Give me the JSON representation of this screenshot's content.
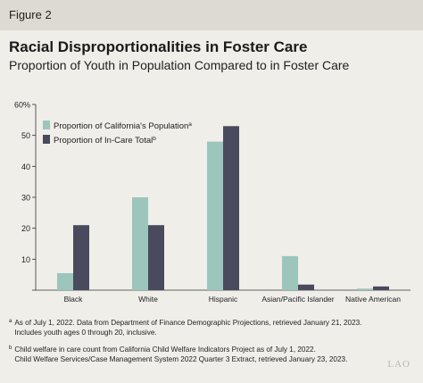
{
  "figure_label": "Figure 2",
  "footnotes": {
    "a_marker": "a",
    "a_text_line1": "As of July 1, 2022. Data from Department of Finance Demographic Projections, retrieved January 21, 2023.",
    "a_text_line2": "Includes youth ages 0 through 20, inclusive.",
    "b_marker": "b",
    "b_text_line1": "Child welfare in care count from California Child Welfare Indicators Project as of July 1, 2022.",
    "b_text_line2": "Child Welfare Services/Case Management System 2022 Quarter 3 Extract, retrieved January 23, 2023."
  },
  "logo_text": "LAO",
  "colors": {
    "background": "#efeee9",
    "header_band": "#dcdad2",
    "population": "#9cc5bb",
    "in_care": "#4a4a5e"
  },
  "chart_data": {
    "type": "bar",
    "title": "Racial Disproportionalities in Foster Care",
    "subtitle": "Proportion of Youth in Population Compared to in Foster Care",
    "categories": [
      "Black",
      "White",
      "Hispanic",
      "Asian/Pacific Islander",
      "Native American"
    ],
    "series": [
      {
        "name": "Proportion of California's Population",
        "marker": "a",
        "color": "#9cc5bb",
        "values": [
          5.5,
          30,
          48,
          11,
          0.5
        ]
      },
      {
        "name": "Proportion of In-Care Total",
        "marker": "b",
        "color": "#4a4a5e",
        "values": [
          21,
          21,
          53,
          1.8,
          1.2
        ]
      }
    ],
    "yticks": [
      "",
      "10",
      "20",
      "30",
      "40",
      "50",
      "60%"
    ],
    "ylim": [
      0,
      60
    ],
    "legend_position": "top-left",
    "grid": false
  }
}
